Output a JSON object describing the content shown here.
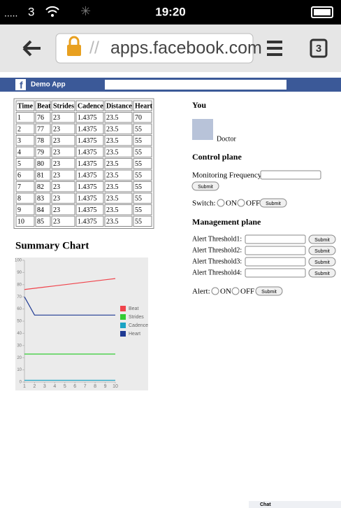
{
  "status_bar": {
    "carrier": "3",
    "time": "19:20"
  },
  "browser": {
    "url_prefix": "//",
    "url": "apps.facebook.com",
    "tabs": "3"
  },
  "facebook_bar": {
    "app_name": "Demo App"
  },
  "table": {
    "header": [
      "Time",
      "Beat",
      "Strides",
      "Cadence",
      "Distance",
      "Heart"
    ],
    "rows": [
      [
        1,
        76,
        23,
        1.4375,
        23.5,
        70
      ],
      [
        2,
        77,
        23,
        1.4375,
        23.5,
        55
      ],
      [
        3,
        78,
        23,
        1.4375,
        23.5,
        55
      ],
      [
        4,
        79,
        23,
        1.4375,
        23.5,
        55
      ],
      [
        5,
        80,
        23,
        1.4375,
        23.5,
        55
      ],
      [
        6,
        81,
        23,
        1.4375,
        23.5,
        55
      ],
      [
        7,
        82,
        23,
        1.4375,
        23.5,
        55
      ],
      [
        8,
        83,
        23,
        1.4375,
        23.5,
        55
      ],
      [
        9,
        84,
        23,
        1.4375,
        23.5,
        55
      ],
      [
        10,
        85,
        23,
        1.4375,
        23.5,
        55
      ]
    ]
  },
  "chart_data": {
    "type": "line",
    "title": "Summary Chart",
    "x": [
      1,
      2,
      3,
      4,
      5,
      6,
      7,
      8,
      9,
      10
    ],
    "series": [
      {
        "name": "Beat",
        "color": "#f0444c",
        "values": [
          76,
          77,
          78,
          79,
          80,
          81,
          82,
          83,
          84,
          85
        ]
      },
      {
        "name": "Strides",
        "color": "#33cc33",
        "values": [
          23,
          23,
          23,
          23,
          23,
          23,
          23,
          23,
          23,
          23
        ]
      },
      {
        "name": "Cadence",
        "color": "#1aa3c4",
        "values": [
          1.4375,
          1.4375,
          1.4375,
          1.4375,
          1.4375,
          1.4375,
          1.4375,
          1.4375,
          1.4375,
          1.4375
        ]
      },
      {
        "name": "Heart",
        "color": "#1f3a93",
        "values": [
          70,
          55,
          55,
          55,
          55,
          55,
          55,
          55,
          55,
          55
        ]
      }
    ],
    "xlim": [
      1,
      10
    ],
    "xticks": [
      1,
      2,
      3,
      4,
      5,
      6,
      7,
      8,
      9,
      10
    ],
    "ylim": [
      0,
      100
    ],
    "yticks": [
      0,
      10,
      20,
      30,
      40,
      50,
      60,
      70,
      80,
      90,
      100
    ],
    "legend": "right"
  },
  "panel": {
    "you": "You",
    "user": "Doctor",
    "control_title": "Control plane",
    "monitoring_label": "Monitoring Frequency:",
    "submit": "Submit",
    "switch_label": "Switch:",
    "on": "ON",
    "off": "OFF",
    "management_title": "Management plane",
    "thresholds": [
      "Alert Threshold1:",
      "Alert Threshold2:",
      "Alert Threshold3:",
      "Alert Threshold4:"
    ],
    "alert_label": "Alert:"
  },
  "chat": "Chat"
}
